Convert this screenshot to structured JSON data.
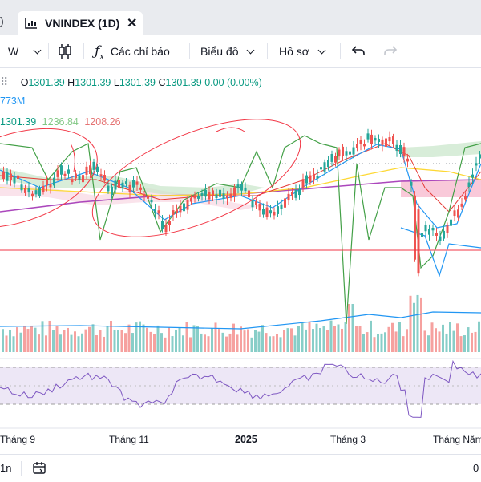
{
  "tab": {
    "title": "VNINDEX (1D)"
  },
  "toolbar": {
    "interval": "W",
    "indicators_label": "Các chỉ báo",
    "chart_type_label": "Biểu đồ",
    "profile_label": "Hồ sơ"
  },
  "legend": {
    "o_label": "O",
    "o_value": "1301.39",
    "h_label": "H",
    "h_value": "1301.39",
    "l_label": "L",
    "l_value": "1301.39",
    "c_label": "C",
    "c_value": "1301.39",
    "change": "0.00 (0.00%)",
    "volume": "773M",
    "ma1": "1301.39",
    "ma2": "1236.84",
    "ma3": "1208.26"
  },
  "x_axis": {
    "labels": [
      "Tháng 9",
      "Tháng 11",
      "2025",
      "Tháng 3",
      "Tháng Năm",
      "0"
    ]
  },
  "bottom": {
    "range": "1n"
  },
  "colors": {
    "up": "#26a69a",
    "down": "#ef5350",
    "accent": "#2962ff",
    "volume_line": "#2196f3",
    "rsi_line": "#7e57c2",
    "rsi_band": "#ede7f6",
    "drawing": "#f23645",
    "cloud_green": "#c8e6c9",
    "cloud_red": "#f8bbd0"
  },
  "icons": {
    "chart": "chart-icon",
    "close": "close-icon",
    "compare": "candlestick-icon",
    "indicators": "fx-icon",
    "undo": "undo-icon",
    "redo": "redo-icon",
    "calendar": "calendar-icon"
  }
}
